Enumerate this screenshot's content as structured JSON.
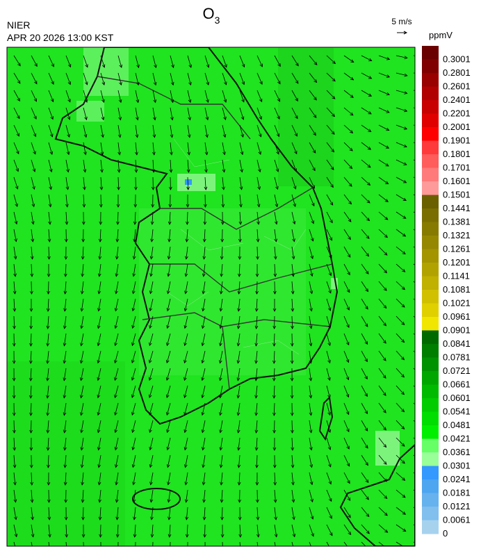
{
  "header": {
    "title": "O",
    "title_subscript": "3",
    "agency": "NIER",
    "timestamp": "APR 20 2026 13:00 KST"
  },
  "wind_scale": {
    "label": "5 m/s"
  },
  "colorbar": {
    "unit": "ppmV",
    "labels": [
      "0.3001",
      "0.2801",
      "0.2601",
      "0.2401",
      "0.2201",
      "0.2001",
      "0.1901",
      "0.1801",
      "0.1701",
      "0.1601",
      "0.1501",
      "0.1441",
      "0.1381",
      "0.1321",
      "0.1261",
      "0.1201",
      "0.1141",
      "0.1081",
      "0.1021",
      "0.0961",
      "0.0901",
      "0.0841",
      "0.0781",
      "0.0721",
      "0.0661",
      "0.0601",
      "0.0541",
      "0.0481",
      "0.0421",
      "0.0361",
      "0.0301",
      "0.0241",
      "0.0181",
      "0.0121",
      "0.0061",
      "0"
    ],
    "colors": [
      "#6b0000",
      "#800000",
      "#990000",
      "#b00000",
      "#c80000",
      "#e00000",
      "#ff0000",
      "#ff3a3a",
      "#ff5c5c",
      "#ff7a7a",
      "#ff9a9a",
      "#6b6000",
      "#7a6e00",
      "#877a00",
      "#958700",
      "#a39400",
      "#b2a200",
      "#c0b000",
      "#d0c000",
      "#e0d000",
      "#f0e600",
      "#006a00",
      "#007e00",
      "#009200",
      "#00a600",
      "#00ba00",
      "#00cc00",
      "#00dd00",
      "#00ef00",
      "#66ff66",
      "#99ff99",
      "#3399ff",
      "#4da6ef",
      "#66b2ee",
      "#80bfee",
      "#a6d2ee"
    ]
  }
}
